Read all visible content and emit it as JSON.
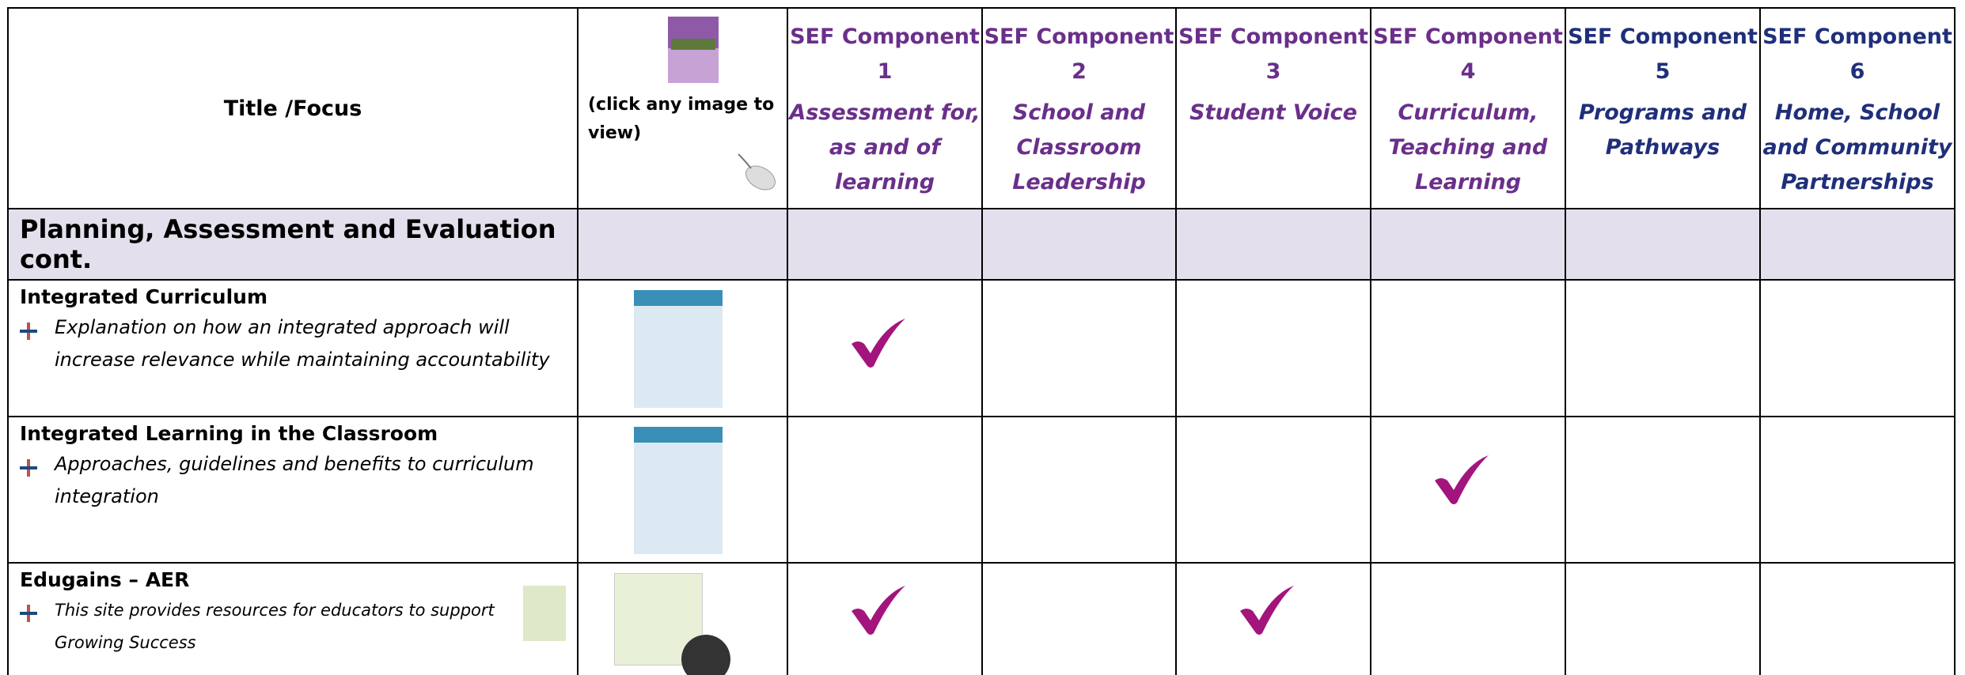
{
  "header": {
    "title": "Title /Focus",
    "image_note": "(click any image to view)"
  },
  "components": [
    {
      "heading": "SEF Component",
      "number": 1,
      "name": "Assessment for, as and of learning",
      "color": "#6a2f8a"
    },
    {
      "heading": "SEF Component",
      "number": 2,
      "name": "School and Classroom Leadership",
      "color": "#6a2f8a"
    },
    {
      "heading": "SEF Component",
      "number": 3,
      "name": "Student Voice",
      "color": "#6a2f8a"
    },
    {
      "heading": "SEF Component",
      "number": 4,
      "name": "Curriculum, Teaching and Learning",
      "color": "#6a2f8a"
    },
    {
      "heading": "SEF Component",
      "number": 5,
      "name": "Programs and Pathways",
      "color": "#1f2f7a"
    },
    {
      "heading": "SEF Component",
      "number": 6,
      "name": "Home, School and Community Partnerships",
      "color": "#1f2f7a"
    }
  ],
  "section": "Planning, Assessment and Evaluation cont.",
  "rows": [
    {
      "title": "Integrated Curriculum",
      "description": "Explanation on how an integrated approach will increase relevance while maintaining accountability",
      "checks": [
        true,
        false,
        false,
        false,
        false,
        false
      ]
    },
    {
      "title": "Integrated Learning in the Classroom",
      "description": "Approaches, guidelines and benefits to curriculum integration",
      "checks": [
        false,
        false,
        false,
        true,
        false,
        false
      ]
    },
    {
      "title": "Edugains – AER",
      "description": "This site provides resources for educators to support Growing Success",
      "checks": [
        true,
        false,
        true,
        false,
        false,
        false
      ]
    }
  ]
}
